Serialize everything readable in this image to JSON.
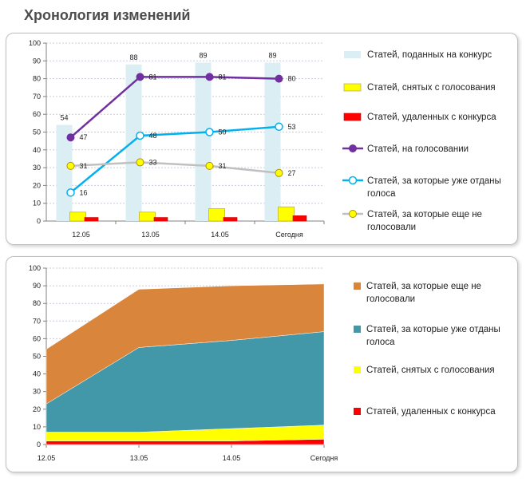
{
  "page": {
    "title": "Хронология изменений"
  },
  "colors": {
    "submitted": "#dbeef4",
    "removed_from_voting": "#ffff00",
    "deleted": "#ff0000",
    "on_voting": "#7030a0",
    "voted": "#00b0f0",
    "not_voted": "#c0c0c0",
    "area_not_voted": "#d9853b",
    "area_voted": "#4297a8",
    "area_removed": "#ffff00",
    "area_deleted": "#ff0000"
  },
  "chart_data": [
    {
      "type": "bar",
      "title": "",
      "xlabel": "",
      "ylabel": "",
      "ylim": [
        0,
        100
      ],
      "yticks": [
        0,
        10,
        20,
        30,
        40,
        50,
        60,
        70,
        80,
        90,
        100
      ],
      "categories": [
        "12.05",
        "13.05",
        "14.05",
        "Сегодня"
      ],
      "bar_series": [
        {
          "name": "Статей, поданных на конкурс",
          "values": [
            54,
            88,
            89,
            89
          ],
          "labels": [
            "54",
            "88",
            "89",
            "89"
          ],
          "color_key": "submitted"
        },
        {
          "name": "Статей, снятых с голосования",
          "values": [
            5,
            5,
            7,
            8
          ],
          "color_key": "removed_from_voting"
        },
        {
          "name": "Статей, удаленных с конкурса",
          "values": [
            2,
            2,
            2,
            3
          ],
          "color_key": "deleted"
        }
      ],
      "line_series": [
        {
          "name": "Статей, на голосовании",
          "values": [
            47,
            81,
            81,
            80
          ],
          "labels": [
            "47",
            "81",
            "81",
            "80"
          ],
          "color_key": "on_voting",
          "marker": "filled"
        },
        {
          "name": "Статей, за которые уже отданы голоса",
          "name_lines": [
            "Статей, за которые уже отданы",
            "голоса"
          ],
          "values": [
            16,
            48,
            50,
            53
          ],
          "labels": [
            "16",
            "48",
            "50",
            "53"
          ],
          "color_key": "voted",
          "marker": "hollow"
        },
        {
          "name": "Статей, за которые еще не голосовали",
          "name_lines": [
            "Статей, за которые еще не",
            "голосовали"
          ],
          "values": [
            31,
            33,
            31,
            27
          ],
          "labels": [
            "31",
            "33",
            "31",
            "27"
          ],
          "color_key": "not_voted",
          "marker": "yellow"
        }
      ],
      "legend": [
        {
          "lines": [
            "Статей, поданных на конкурс"
          ],
          "kind": "bar",
          "color_key": "submitted"
        },
        {
          "lines": [
            "Статей, снятых с голосования"
          ],
          "kind": "bar",
          "color_key": "removed_from_voting"
        },
        {
          "lines": [
            "Статей, удаленных с конкурса"
          ],
          "kind": "bar",
          "color_key": "deleted"
        },
        {
          "lines": [
            "Статей, на голосовании"
          ],
          "kind": "line",
          "color_key": "on_voting",
          "marker": "filled"
        },
        {
          "lines": [
            "Статей, за которые уже отданы",
            "голоса"
          ],
          "kind": "line",
          "color_key": "voted",
          "marker": "hollow"
        },
        {
          "lines": [
            "Статей, за которые еще не",
            "голосовали"
          ],
          "kind": "line",
          "color_key": "not_voted",
          "marker": "yellow"
        }
      ],
      "legend_position": "right",
      "grid": true
    },
    {
      "type": "area",
      "stacked": true,
      "title": "",
      "xlabel": "",
      "ylabel": "",
      "ylim": [
        0,
        100
      ],
      "yticks": [
        0,
        10,
        20,
        30,
        40,
        50,
        60,
        70,
        80,
        90,
        100
      ],
      "categories": [
        "12.05",
        "13.05",
        "14.05",
        "Сегодня"
      ],
      "series": [
        {
          "name": "Статей, удаленных с конкурса",
          "values": [
            2,
            2,
            2,
            3
          ],
          "color_key": "area_deleted"
        },
        {
          "name": "Статей, снятых с голосования",
          "values": [
            5,
            5,
            7,
            8
          ],
          "color_key": "area_removed"
        },
        {
          "name": "Статей, за которые уже отданы голоса",
          "values": [
            16,
            48,
            50,
            53
          ],
          "color_key": "area_voted"
        },
        {
          "name": "Статей, за которые еще не голосовали",
          "values": [
            31,
            33,
            31,
            27
          ],
          "color_key": "area_not_voted"
        }
      ],
      "legend": [
        {
          "lines": [
            "Статей, за которые еще не",
            "голосовали"
          ],
          "color_key": "area_not_voted"
        },
        {
          "lines": [
            "Статей, за которые уже отданы",
            "голоса"
          ],
          "color_key": "area_voted"
        },
        {
          "lines": [
            "Статей, снятых с голосования"
          ],
          "color_key": "area_removed"
        },
        {
          "lines": [
            "Статей, удаленных с конкурса"
          ],
          "color_key": "area_deleted"
        }
      ],
      "legend_position": "right",
      "grid": true
    }
  ]
}
